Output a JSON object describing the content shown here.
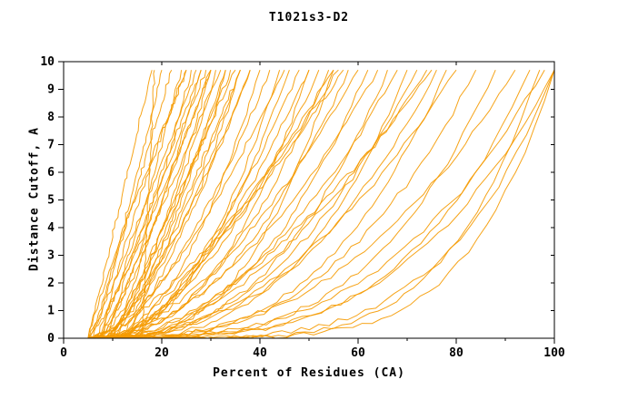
{
  "chart_data": {
    "type": "line",
    "title": "T1021s3-D2",
    "xlabel": "Percent of Residues (CA)",
    "ylabel": "Distance Cutoff, A",
    "xlim": [
      0,
      100
    ],
    "ylim": [
      0,
      10
    ],
    "x_ticks": [
      0,
      20,
      40,
      60,
      80,
      100
    ],
    "x_minor_ticks": [
      10,
      30,
      50,
      70,
      90
    ],
    "y_ticks": [
      0,
      1,
      2,
      3,
      4,
      5,
      6,
      7,
      8,
      9,
      10
    ],
    "grid": false,
    "legend": "none",
    "line_color": "#f59a00",
    "axis_color": "#000000",
    "curve_y_max": 9.7,
    "jitter_amp": 0.18,
    "jitter_seed": 7,
    "curves_note": "each curve = [x_start_percent, x_at_max_cutoff, shape_exponent]; y(t)=curve_y_max*t^p over x in [x_start, x_end]",
    "curves": [
      [
        5,
        18,
        1.0
      ],
      [
        5,
        20,
        1.2
      ],
      [
        6,
        22,
        1.0
      ],
      [
        6,
        24,
        1.3
      ],
      [
        5,
        25,
        0.9
      ],
      [
        7,
        26,
        1.4
      ],
      [
        5,
        27,
        1.1
      ],
      [
        6,
        28,
        1.5
      ],
      [
        7,
        29,
        1.0
      ],
      [
        5,
        30,
        1.2
      ],
      [
        6,
        31,
        1.6
      ],
      [
        7,
        32,
        1.1
      ],
      [
        16,
        18.5,
        1.0
      ],
      [
        8,
        25,
        0.8
      ],
      [
        9,
        28,
        0.9
      ],
      [
        10,
        30,
        1.3
      ],
      [
        8,
        33,
        1.5
      ],
      [
        9,
        34,
        1.2
      ],
      [
        10,
        35,
        1.0
      ],
      [
        8,
        36,
        1.4
      ],
      [
        11,
        30,
        0.9
      ],
      [
        12,
        33,
        1.1
      ],
      [
        13,
        36,
        1.0
      ],
      [
        11,
        38,
        1.3
      ],
      [
        5,
        36,
        1.8
      ],
      [
        6,
        38,
        1.5
      ],
      [
        7,
        40,
        2.0
      ],
      [
        5,
        42,
        1.7
      ],
      [
        6,
        44,
        2.2
      ],
      [
        8,
        45,
        1.4
      ],
      [
        9,
        46,
        1.9
      ],
      [
        10,
        48,
        1.6
      ],
      [
        6,
        50,
        2.4
      ],
      [
        7,
        52,
        1.8
      ],
      [
        8,
        54,
        2.0
      ],
      [
        5,
        55,
        1.5
      ],
      [
        9,
        55,
        2.6
      ],
      [
        10,
        56,
        1.3
      ],
      [
        6,
        58,
        2.1
      ],
      [
        7,
        60,
        1.7
      ],
      [
        12,
        50,
        1.5
      ],
      [
        13,
        57,
        1.2
      ],
      [
        8,
        62,
        2.3
      ],
      [
        5,
        64,
        1.9
      ],
      [
        6,
        66,
        2.6
      ],
      [
        7,
        68,
        2.0
      ],
      [
        8,
        70,
        2.8
      ],
      [
        9,
        72,
        2.2
      ],
      [
        10,
        74,
        1.8
      ],
      [
        5,
        76,
        2.5
      ],
      [
        6,
        78,
        3.0
      ],
      [
        7,
        80,
        2.1
      ],
      [
        11,
        75,
        1.6
      ],
      [
        8,
        84,
        2.7
      ],
      [
        9,
        88,
        3.2
      ],
      [
        10,
        92,
        2.4
      ],
      [
        6,
        95,
        3.6
      ],
      [
        7,
        98,
        2.9
      ],
      [
        5,
        100,
        3.3
      ],
      [
        6,
        100,
        5.5
      ],
      [
        8,
        100,
        4.2
      ],
      [
        9,
        97,
        4.8
      ]
    ]
  }
}
